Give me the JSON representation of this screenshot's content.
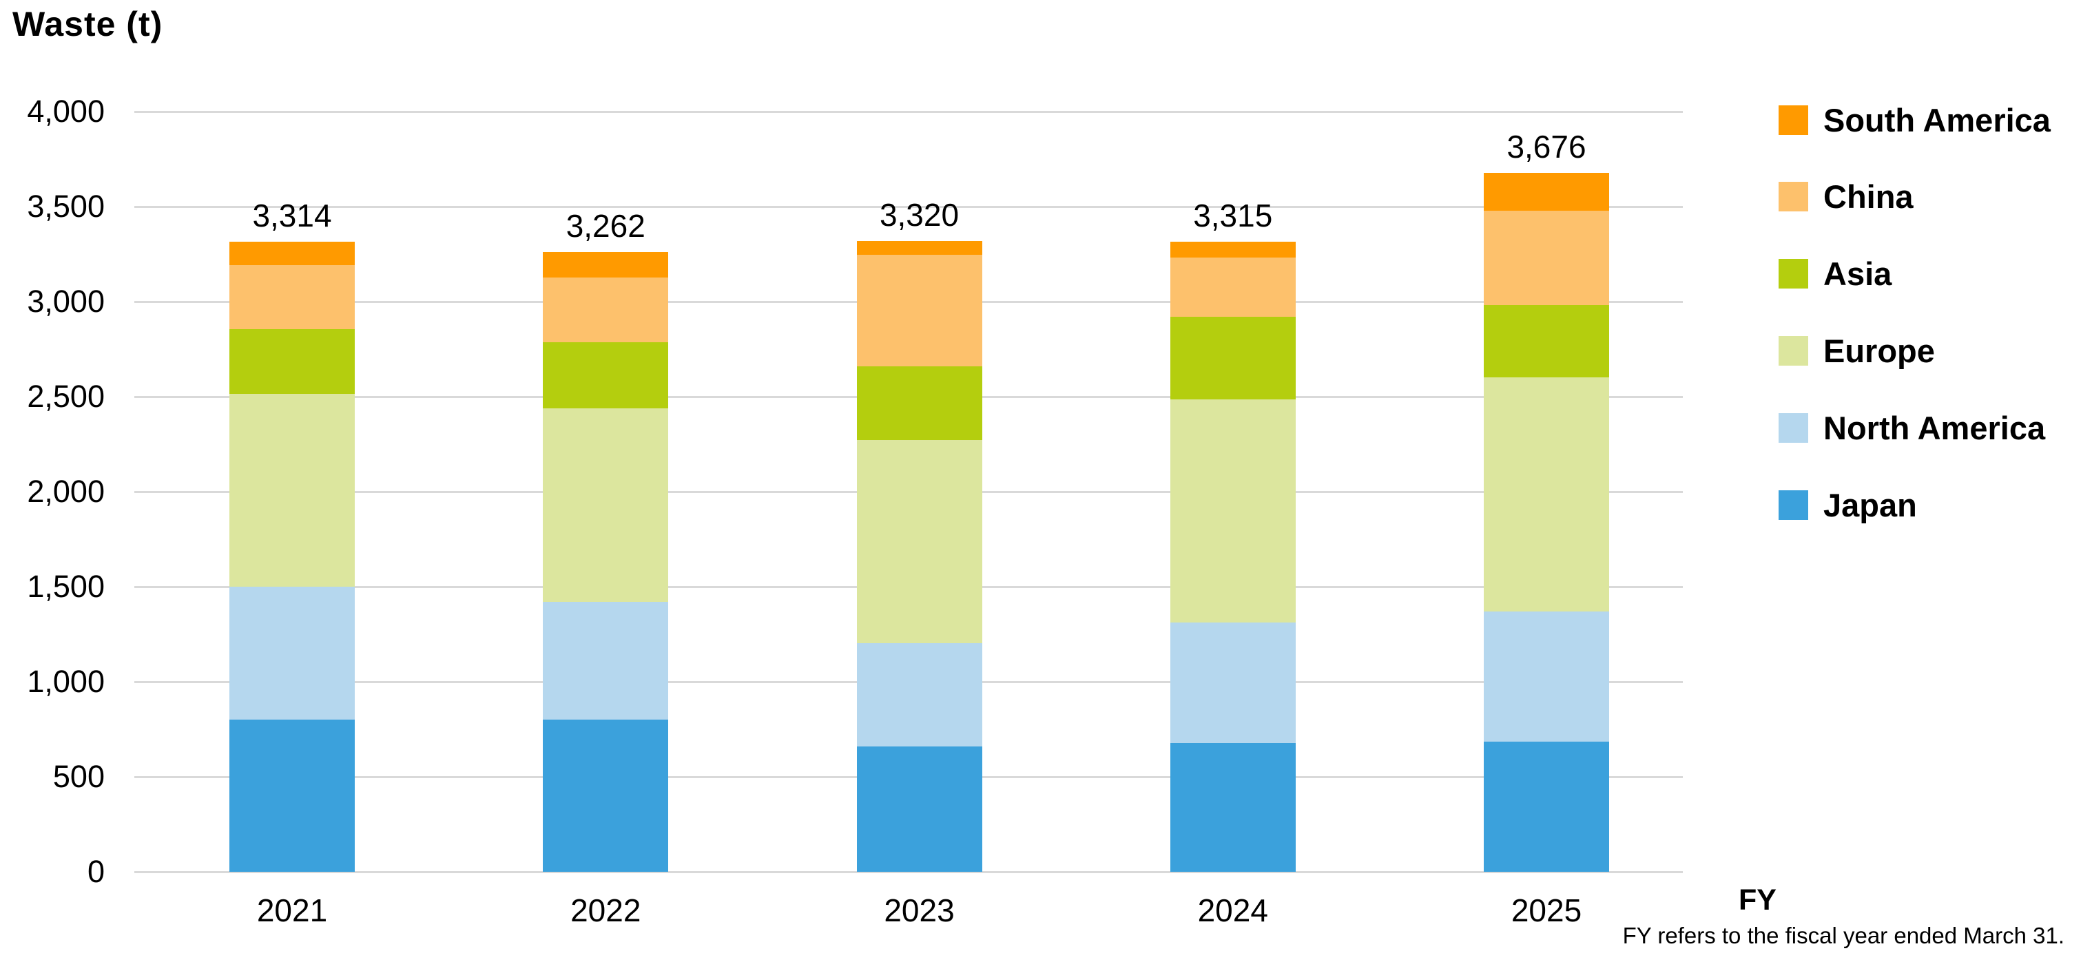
{
  "title": "Waste (t)",
  "footer": {
    "fy_label": "FY",
    "note": "FY refers to the fiscal year ended March 31."
  },
  "colors": {
    "gridline": "#D9D9D9",
    "axis_line": "#D9D9D9",
    "text": "#000000",
    "background": "#FFFFFF"
  },
  "chart_data": {
    "type": "bar",
    "stacked": true,
    "title": "Waste (t)",
    "xlabel": "FY",
    "ylabel": "Waste (t)",
    "categories": [
      "2021",
      "2022",
      "2023",
      "2024",
      "2025"
    ],
    "series": [
      {
        "name": "Japan",
        "color": "#3BA1DC",
        "values": [
          800,
          800,
          660,
          678,
          683
        ]
      },
      {
        "name": "North America",
        "color": "#B5D7EE",
        "values": [
          700,
          621,
          542,
          632,
          685
        ]
      },
      {
        "name": "Europe",
        "color": "#DCE69E",
        "values": [
          1016,
          1018,
          1069,
          1175,
          1234
        ]
      },
      {
        "name": "Asia",
        "color": "#B4CE0E",
        "values": [
          340,
          347,
          387,
          435,
          379
        ]
      },
      {
        "name": "China",
        "color": "#FDC16C",
        "values": [
          335,
          341,
          588,
          313,
          498
        ]
      },
      {
        "name": "South America",
        "color": "#FF9A00",
        "values": [
          123,
          135,
          74,
          82,
          197
        ]
      }
    ],
    "totals": [
      "3,314",
      "3,262",
      "3,320",
      "3,315",
      "3,676"
    ],
    "ylim": [
      0,
      4000
    ],
    "ytick_interval": 500,
    "ytick_labels": [
      "0",
      "500",
      "1,000",
      "1,500",
      "2,000",
      "2,500",
      "3,000",
      "3,500",
      "4,000"
    ],
    "grid": true,
    "legend_position": "right",
    "legend_order": [
      "South America",
      "China",
      "Asia",
      "Europe",
      "North America",
      "Japan"
    ]
  }
}
